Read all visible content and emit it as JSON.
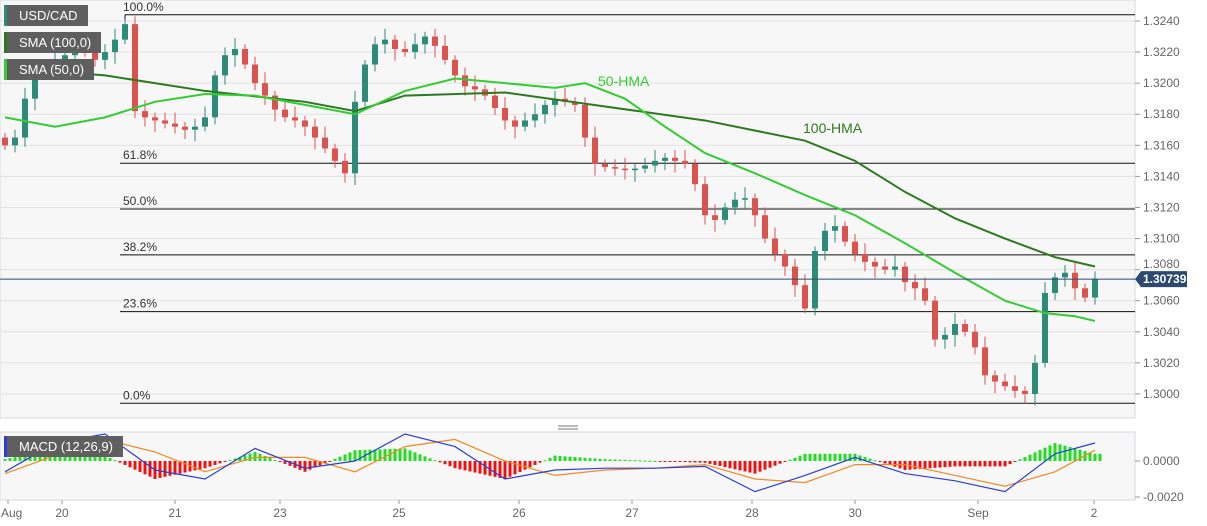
{
  "chart_data": {
    "type": "candlestick",
    "symbol": "USD/CAD",
    "legend": [
      "USD/CAD",
      "SMA (100,0)",
      "SMA (50,0)"
    ],
    "x_tick_labels": [
      "Aug",
      "20",
      "21",
      "23",
      "25",
      "26",
      "27",
      "28",
      "30",
      "Sep",
      "2"
    ],
    "y_ticks": [
      "1.3240",
      "1.3220",
      "1.3200",
      "1.3180",
      "1.3160",
      "1.3140",
      "1.3120",
      "1.3100",
      "1.3080",
      "1.3060",
      "1.3040",
      "1.3020",
      "1.3000"
    ],
    "ylim": [
      1.2988,
      1.3253
    ],
    "last_price": "1.30739",
    "closes": [
      1.316,
      1.3165,
      1.319,
      1.3205,
      1.321,
      1.3215,
      1.3218,
      1.3222,
      1.322,
      1.3215,
      1.322,
      1.3228,
      1.3238,
      1.3182,
      1.3178,
      1.3176,
      1.3174,
      1.3172,
      1.317,
      1.3172,
      1.3178,
      1.3205,
      1.3218,
      1.3222,
      1.3212,
      1.32,
      1.3192,
      1.3183,
      1.3178,
      1.3176,
      1.3172,
      1.3165,
      1.3158,
      1.315,
      1.3142,
      1.3188,
      1.3212,
      1.3225,
      1.3228,
      1.3222,
      1.322,
      1.3225,
      1.323,
      1.3224,
      1.3215,
      1.3205,
      1.3198,
      1.3196,
      1.3192,
      1.3184,
      1.3176,
      1.3172,
      1.3176,
      1.318,
      1.3186,
      1.319,
      1.3188,
      1.3186,
      1.3165,
      1.3148,
      1.3146,
      1.3145,
      1.3144,
      1.3145,
      1.3147,
      1.315,
      1.3152,
      1.315,
      1.3148,
      1.3135,
      1.3115,
      1.3112,
      1.312,
      1.3125,
      1.3126,
      1.3115,
      1.31,
      1.309,
      1.3082,
      1.307,
      1.3055,
      1.3092,
      1.3105,
      1.3108,
      1.3098,
      1.309,
      1.3085,
      1.3082,
      1.308,
      1.3082,
      1.3072,
      1.3068,
      1.306,
      1.3035,
      1.3038,
      1.3045,
      1.304,
      1.303,
      1.3012,
      1.3008,
      1.3005,
      1.3002,
      1.3,
      1.302,
      1.3065,
      1.3075,
      1.3078,
      1.3068,
      1.3062,
      1.30739
    ],
    "hma50": {
      "label": "50-HMA",
      "color": "#33cc33",
      "points": [
        [
          0,
          1.3178
        ],
        [
          5,
          1.3172
        ],
        [
          10,
          1.3178
        ],
        [
          15,
          1.3188
        ],
        [
          20,
          1.3193
        ],
        [
          25,
          1.3192
        ],
        [
          30,
          1.3186
        ],
        [
          35,
          1.318
        ],
        [
          40,
          1.3195
        ],
        [
          45,
          1.3203
        ],
        [
          50,
          1.32
        ],
        [
          55,
          1.3197
        ],
        [
          58,
          1.32
        ],
        [
          62,
          1.319
        ],
        [
          66,
          1.3172
        ],
        [
          70,
          1.3155
        ],
        [
          75,
          1.3142
        ],
        [
          80,
          1.3128
        ],
        [
          85,
          1.3115
        ],
        [
          90,
          1.3097
        ],
        [
          95,
          1.3078
        ],
        [
          100,
          1.306
        ],
        [
          104,
          1.3052
        ],
        [
          107,
          1.305
        ],
        [
          109,
          1.3047
        ]
      ]
    },
    "hma100": {
      "label": "100-HMA",
      "color": "#2d7a1e",
      "points": [
        [
          0,
          1.321
        ],
        [
          10,
          1.3205
        ],
        [
          20,
          1.3195
        ],
        [
          30,
          1.3188
        ],
        [
          35,
          1.3182
        ],
        [
          40,
          1.3192
        ],
        [
          50,
          1.3194
        ],
        [
          60,
          1.3185
        ],
        [
          70,
          1.3176
        ],
        [
          80,
          1.3163
        ],
        [
          85,
          1.315
        ],
        [
          90,
          1.313
        ],
        [
          95,
          1.3113
        ],
        [
          100,
          1.31
        ],
        [
          105,
          1.3088
        ],
        [
          109,
          1.3082
        ]
      ]
    },
    "fibonacci": [
      {
        "label": "100.0%",
        "value": 1.3244
      },
      {
        "label": "61.8%",
        "value": 1.31485
      },
      {
        "label": "50.0%",
        "value": 1.3119
      },
      {
        "label": "38.2%",
        "value": 1.30895
      },
      {
        "label": "23.6%",
        "value": 1.3053
      },
      {
        "label": "0.0%",
        "value": 1.2994
      }
    ],
    "macd": {
      "label": "MACD (12,26,9)",
      "y_ticks": [
        "0.0000",
        "-0.0020"
      ],
      "macd_points": [
        [
          0,
          -0.0006
        ],
        [
          5,
          0.001
        ],
        [
          10,
          0.0015
        ],
        [
          15,
          -0.0005
        ],
        [
          20,
          -0.001
        ],
        [
          25,
          0.0007
        ],
        [
          30,
          -0.0004
        ],
        [
          35,
          0.0
        ],
        [
          40,
          0.0015
        ],
        [
          45,
          0.0008
        ],
        [
          50,
          -0.001
        ],
        [
          55,
          -0.0005
        ],
        [
          60,
          -0.0004
        ],
        [
          65,
          -0.0004
        ],
        [
          70,
          -0.0003
        ],
        [
          75,
          -0.0017
        ],
        [
          80,
          -0.0008
        ],
        [
          85,
          0.0002
        ],
        [
          90,
          -0.0007
        ],
        [
          95,
          -0.0011
        ],
        [
          100,
          -0.0017
        ],
        [
          105,
          0.0004
        ],
        [
          109,
          0.001
        ]
      ],
      "signal_points": [
        [
          0,
          -0.0007
        ],
        [
          5,
          0.0003
        ],
        [
          10,
          0.0012
        ],
        [
          15,
          0.0005
        ],
        [
          20,
          -0.0006
        ],
        [
          25,
          0.0002
        ],
        [
          30,
          0.0002
        ],
        [
          35,
          -0.0006
        ],
        [
          40,
          0.0008
        ],
        [
          45,
          0.0012
        ],
        [
          50,
          0.0
        ],
        [
          55,
          -0.0008
        ],
        [
          60,
          -0.0005
        ],
        [
          65,
          -0.0004
        ],
        [
          70,
          -0.0002
        ],
        [
          75,
          -0.001
        ],
        [
          80,
          -0.0012
        ],
        [
          85,
          -0.0002
        ],
        [
          90,
          -0.0002
        ],
        [
          95,
          -0.0008
        ],
        [
          100,
          -0.0014
        ],
        [
          105,
          -0.0006
        ],
        [
          109,
          0.0006
        ]
      ]
    },
    "colors": {
      "up": "#2e8b7a",
      "down": "#d9534f",
      "macd": "#2a3fd6",
      "signal": "#f08a24",
      "hist_up": "#22dd22",
      "hist_down": "#ee1111",
      "price_tag": "#2b4a6e"
    }
  }
}
